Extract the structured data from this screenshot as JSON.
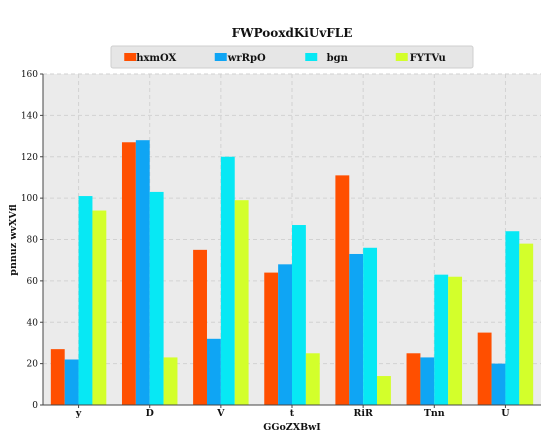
{
  "chart_data": {
    "type": "bar",
    "title": "FWPooxdKiUvFLE",
    "xlabel": "GGoZXBwI",
    "ylabel": "pnnuz wvXVfl",
    "categories": [
      "y",
      "D",
      "V",
      "t",
      "RiR",
      "Tnn",
      "U"
    ],
    "series": [
      {
        "name": "hxmOX",
        "color": "#ff4f00",
        "values": [
          27,
          127,
          75,
          64,
          111,
          25,
          35
        ]
      },
      {
        "name": "wrRpO",
        "color": "#0fa5f4",
        "values": [
          22,
          128,
          32,
          68,
          73,
          23,
          20
        ]
      },
      {
        "name": "bgn",
        "color": "#07e8f4",
        "values": [
          101,
          103,
          120,
          87,
          76,
          63,
          84
        ]
      },
      {
        "name": "FYTVu",
        "color": "#d3ff2b",
        "values": [
          94,
          23,
          99,
          25,
          14,
          62,
          78
        ]
      }
    ],
    "ylim": [
      0,
      160
    ],
    "yticks": [
      0,
      20,
      40,
      60,
      80,
      100,
      120,
      140,
      160
    ],
    "grid": true,
    "legend_position": "top"
  }
}
